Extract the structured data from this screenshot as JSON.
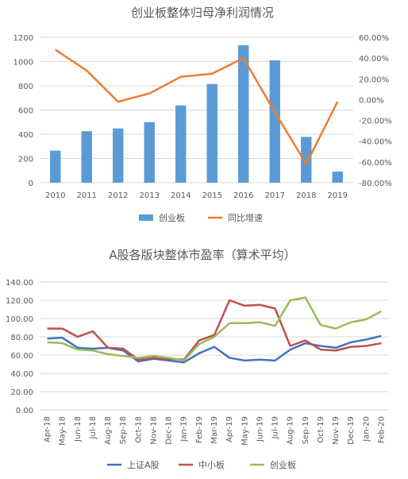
{
  "chart_data": [
    {
      "type": "bar",
      "title": "创业板整体归母净利润情况",
      "categories": [
        "2010",
        "2011",
        "2012",
        "2013",
        "2014",
        "2015",
        "2016",
        "2017",
        "2018",
        "2019"
      ],
      "ylim": [
        0,
        1200
      ],
      "y_ticks": [
        "0",
        "200",
        "400",
        "600",
        "800",
        "1000",
        "1200"
      ],
      "y2lim": [
        -80,
        60
      ],
      "y2_ticks": [
        "60.00%",
        "40.00%",
        "20.00%",
        "0.00%",
        "-20.00%",
        "-40.00%",
        "-60.00%",
        "-80.00%"
      ],
      "series": [
        {
          "name": "创业板",
          "type": "bar",
          "color": "#5b9bd5",
          "values": [
            265,
            425,
            448,
            500,
            638,
            815,
            1135,
            1010,
            378,
            92
          ]
        },
        {
          "name": "同比增速",
          "type": "line",
          "axis": "right",
          "color": "#ed7d31",
          "values": [
            48,
            28,
            -2,
            6,
            22,
            25,
            40,
            -12,
            -62,
            -2
          ]
        }
      ],
      "legend_position": "bottom",
      "grid": true
    },
    {
      "type": "line",
      "title": "A股各版块整体市盈率（算术平均）",
      "categories": [
        "Apr-18",
        "May-18",
        "Jun-18",
        "Jul-18",
        "Aug-18",
        "Sep-18",
        "Oct-18",
        "Nov-18",
        "Dec-18",
        "Jan-19",
        "Feb-19",
        "Mar-19",
        "Apr-19",
        "May-19",
        "Jun-19",
        "Jul-19",
        "Aug-19",
        "Sep-19",
        "Oct-19",
        "Nov-19",
        "Dec-19",
        "Jan-20",
        "Feb-20"
      ],
      "ylim": [
        0,
        140
      ],
      "y_ticks": [
        "0.00",
        "20.00",
        "40.00",
        "60.00",
        "80.00",
        "100.00",
        "120.00",
        "140.00"
      ],
      "series": [
        {
          "name": "上证A股",
          "color": "#4472c4",
          "values": [
            78,
            79,
            68,
            67,
            68,
            65,
            53,
            56,
            54,
            52,
            62,
            69,
            57,
            54,
            55,
            54,
            66,
            73,
            70,
            68,
            74,
            77,
            81
          ]
        },
        {
          "name": "中小板",
          "color": "#c0504d",
          "values": [
            89,
            89,
            80,
            86,
            68,
            67,
            55,
            57,
            56,
            55,
            76,
            82,
            120,
            114,
            115,
            111,
            70,
            76,
            66,
            65,
            69,
            70,
            73
          ]
        },
        {
          "name": "创业板",
          "color": "#9bbb59",
          "values": [
            74,
            73,
            66,
            65,
            61,
            59,
            57,
            59,
            57,
            54,
            72,
            80,
            95,
            95,
            96,
            92,
            120,
            123,
            93,
            89,
            96,
            99,
            108
          ]
        }
      ],
      "legend_position": "bottom",
      "grid": true
    }
  ]
}
